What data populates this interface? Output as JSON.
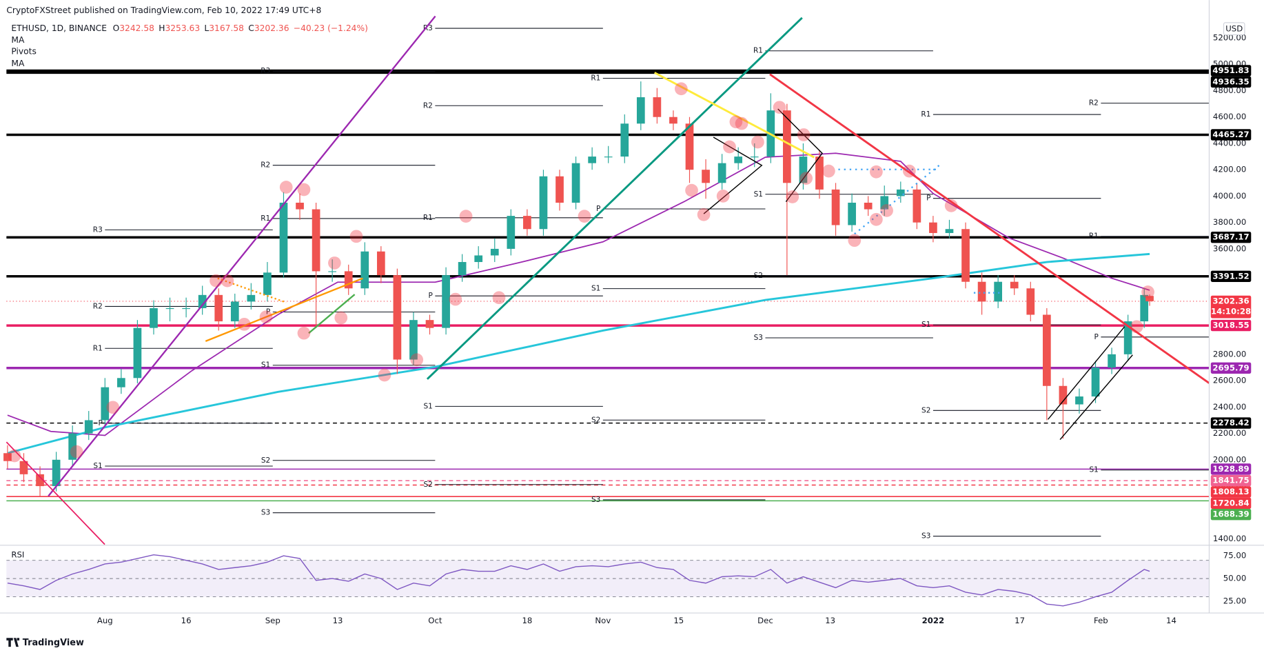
{
  "header": {
    "publisher": "CryptoFXStreet published on TradingView.com, Feb 10, 2022 17:49 UTC+8",
    "symbol": "ETHUSD, 1D, BINANCE",
    "ohlc": [
      {
        "label": "O",
        "value": 3242.58
      },
      {
        "label": "H",
        "value": 3253.63
      },
      {
        "label": "L",
        "value": 3167.58
      },
      {
        "label": "C",
        "value": 3202.36
      }
    ],
    "change": "−40.23 (−1.24%)",
    "pivots_title": "Pivots",
    "currency": "USD",
    "brand": "TradingView"
  },
  "chart_data": {
    "type": "candlestick",
    "up_color": "#26a69a",
    "down_color": "#ef5350",
    "grid": false,
    "xlim": [
      -0.2,
      222
    ],
    "xticks": [
      {
        "value": 18,
        "label": "Aug"
      },
      {
        "value": 33,
        "label": "16"
      },
      {
        "value": 49,
        "label": "Sep"
      },
      {
        "value": 61,
        "label": "13"
      },
      {
        "value": 79,
        "label": "Oct"
      },
      {
        "value": 96,
        "label": "18"
      },
      {
        "value": 110,
        "label": "Nov"
      },
      {
        "value": 124,
        "label": "15"
      },
      {
        "value": 140,
        "label": "Dec"
      },
      {
        "value": 152,
        "label": "13"
      },
      {
        "value": 171,
        "label": "2022"
      },
      {
        "value": 187,
        "label": "17"
      },
      {
        "value": 202,
        "label": "Feb"
      },
      {
        "value": 215,
        "label": "14"
      }
    ],
    "ylim": [
      1376,
      5487
    ],
    "yticks": [
      {
        "value": 1400,
        "label": "1400.00"
      },
      {
        "value": 1600,
        "label": "1600.00"
      },
      {
        "value": 1800,
        "label": "1800.00"
      },
      {
        "value": 2000,
        "label": "2000.00"
      },
      {
        "value": 2200,
        "label": "2200.00"
      },
      {
        "value": 2400,
        "label": "2400.00"
      },
      {
        "value": 2600,
        "label": "2600.00"
      },
      {
        "value": 2800,
        "label": "2800.00"
      },
      {
        "value": 3000,
        "label": "3000.00"
      },
      {
        "value": 3200,
        "label": "3200.00"
      },
      {
        "value": 3400,
        "label": "3400.00"
      },
      {
        "value": 3600,
        "label": "3600.00"
      },
      {
        "value": 3800,
        "label": "3800.00"
      },
      {
        "value": 4000,
        "label": "4000.00"
      },
      {
        "value": 4200,
        "label": "4200.00"
      },
      {
        "value": 4400,
        "label": "4400.00"
      },
      {
        "value": 4600,
        "label": "4600.00"
      },
      {
        "value": 4800,
        "label": "4800.00"
      },
      {
        "value": 5000,
        "label": "5000.00"
      },
      {
        "value": 5200,
        "label": "5200.00"
      }
    ],
    "x": [
      0,
      3,
      6,
      9,
      12,
      15,
      18,
      21,
      24,
      27,
      30,
      33,
      36,
      39,
      42,
      45,
      48,
      51,
      54,
      57,
      60,
      63,
      66,
      69,
      72,
      75,
      78,
      81,
      84,
      87,
      90,
      93,
      96,
      99,
      102,
      105,
      108,
      111,
      114,
      117,
      120,
      123,
      126,
      129,
      132,
      135,
      138,
      141,
      144,
      147,
      150,
      153,
      156,
      159,
      162,
      165,
      168,
      171,
      174,
      177,
      180,
      183,
      186,
      189,
      192,
      195,
      198,
      201,
      204,
      207,
      210,
      211
    ],
    "open": [
      2050,
      1990,
      1890,
      1800,
      2000,
      2200,
      2300,
      2550,
      2620,
      3000,
      3150,
      3150,
      3150,
      3250,
      3050,
      3200,
      3250,
      3420,
      3950,
      3900,
      3430,
      3430,
      3300,
      3580,
      3400,
      2760,
      3060,
      3000,
      3400,
      3500,
      3550,
      3600,
      3850,
      3750,
      4150,
      3950,
      4250,
      4300,
      4300,
      4550,
      4750,
      4600,
      4550,
      4200,
      4100,
      4250,
      4300,
      4300,
      4650,
      4100,
      4300,
      4050,
      3780,
      3950,
      3900,
      4000,
      4050,
      3800,
      3720,
      3750,
      3350,
      3200,
      3350,
      3300,
      3100,
      2560,
      2420,
      2480,
      2700,
      2800,
      3050,
      3242.58
    ],
    "high": [
      2110,
      2050,
      1950,
      2060,
      2260,
      2370,
      2620,
      2690,
      3060,
      3210,
      3230,
      3230,
      3320,
      3300,
      3260,
      3340,
      3500,
      4030,
      4020,
      3950,
      3520,
      3480,
      3650,
      3620,
      3450,
      3120,
      3100,
      3460,
      3560,
      3620,
      3680,
      3900,
      3900,
      4200,
      4200,
      4300,
      4370,
      4380,
      4620,
      4870,
      4820,
      4650,
      4600,
      4280,
      4320,
      4370,
      4400,
      4780,
      4700,
      4400,
      4350,
      4100,
      4020,
      4000,
      4080,
      4110,
      4100,
      3850,
      3820,
      3800,
      3420,
      3400,
      3400,
      3350,
      3150,
      2620,
      2540,
      2750,
      2850,
      3100,
      3300,
      3253.63
    ],
    "low": [
      1930,
      1830,
      1720,
      1760,
      1950,
      2150,
      2250,
      2500,
      2580,
      2950,
      3050,
      3080,
      3100,
      2980,
      3000,
      3140,
      3200,
      3380,
      3820,
      3000,
      3350,
      3250,
      3250,
      3340,
      2650,
      2720,
      2950,
      2950,
      3350,
      3450,
      3500,
      3550,
      3700,
      3700,
      3890,
      3900,
      4200,
      4250,
      4250,
      4500,
      4550,
      4500,
      4100,
      3980,
      4050,
      4200,
      4220,
      4250,
      3400,
      4050,
      3980,
      3700,
      3730,
      3850,
      3850,
      3950,
      3750,
      3650,
      3680,
      3300,
      3100,
      3150,
      3250,
      3050,
      2300,
      2160,
      2350,
      2430,
      2650,
      2750,
      3000,
      3167.58
    ],
    "close": [
      1990,
      1890,
      1800,
      2000,
      2200,
      2300,
      2550,
      2620,
      3000,
      3150,
      3150,
      3150,
      3250,
      3050,
      3200,
      3250,
      3420,
      3950,
      3900,
      3430,
      3430,
      3300,
      3580,
      3400,
      2760,
      3060,
      3000,
      3400,
      3500,
      3550,
      3600,
      3850,
      3750,
      4150,
      3950,
      4250,
      4300,
      4300,
      4550,
      4750,
      4600,
      4550,
      4200,
      4100,
      4250,
      4300,
      4300,
      4650,
      4100,
      4300,
      4050,
      3780,
      3950,
      3900,
      4000,
      4050,
      3800,
      3720,
      3750,
      3350,
      3200,
      3350,
      3300,
      3100,
      2560,
      2420,
      2480,
      2700,
      2800,
      3050,
      3250,
      3202.36
    ],
    "series": [
      {
        "name": "MA",
        "color": "#9c27b0",
        "x": [
          0,
          8,
          18,
          34,
          50,
          61,
          79,
          95,
          110,
          125,
          140,
          153,
          165,
          171,
          185,
          195,
          204,
          211
        ],
        "values": [
          2338,
          2215,
          2185,
          2674,
          3102,
          3347,
          3347,
          3500,
          3653,
          3958,
          4295,
          4325,
          4264,
          4020,
          3683,
          3530,
          3377,
          3286
        ]
      },
      {
        "name": "MA",
        "color": "#26c6da",
        "x": [
          0,
          18,
          50,
          79,
          110,
          140,
          171,
          192,
          211
        ],
        "values": [
          2050,
          2246,
          2515,
          2705,
          2980,
          3212,
          3377,
          3500,
          3561
        ]
      }
    ],
    "levels": [
      {
        "value": 4951.83,
        "color": "#000000",
        "style": "thick"
      },
      {
        "value": 4936.35,
        "color": "#000000",
        "style": "thick"
      },
      {
        "value": 4465.27,
        "color": "#000000",
        "style": "thick"
      },
      {
        "value": 3687.17,
        "color": "#000000",
        "style": "thick"
      },
      {
        "value": 3391.52,
        "color": "#000000",
        "style": "thick"
      },
      {
        "value": 3202.36,
        "color": "#f23645",
        "style": "dotted",
        "countdown": "14:10:28"
      },
      {
        "value": 3018.55,
        "color": "#e91e63",
        "style": "thick"
      },
      {
        "value": 2695.79,
        "color": "#9c27b0",
        "style": "thick"
      },
      {
        "value": 2278.42,
        "color": "#000000",
        "style": "dashed"
      },
      {
        "value": 1928.89,
        "color": "#9c27b0",
        "style": "solid"
      },
      {
        "value": 1841.75,
        "color": "#f06292",
        "style": "dashed"
      },
      {
        "value": 1808.13,
        "color": "#f23645",
        "style": "dashed"
      },
      {
        "value": 1720.84,
        "color": "#f23645",
        "style": "solid"
      },
      {
        "value": 1688.39,
        "color": "#4caf50",
        "style": "solid"
      }
    ],
    "pivots": [
      {
        "levels": [
          {
            "label": "R3",
            "value": 3744
          },
          {
            "label": "R2",
            "value": 3163
          },
          {
            "label": "R1",
            "value": 2845
          },
          {
            "label": "P",
            "value": 2277
          },
          {
            "label": "S1",
            "value": 1952
          }
        ]
      },
      {
        "levels": [
          {
            "label": "R3",
            "value": 4949
          },
          {
            "label": "R2",
            "value": 4234
          },
          {
            "label": "R1",
            "value": 3830
          },
          {
            "label": "P",
            "value": 3121
          },
          {
            "label": "S1",
            "value": 2717
          },
          {
            "label": "S2",
            "value": 1995
          },
          {
            "label": "S3",
            "value": 1598
          }
        ]
      },
      {
        "levels": [
          {
            "label": "R3",
            "value": 5273
          },
          {
            "label": "R2",
            "value": 4686
          },
          {
            "label": "R1",
            "value": 3836
          },
          {
            "label": "P",
            "value": 3243
          },
          {
            "label": "S1",
            "value": 2405
          },
          {
            "label": "S2",
            "value": 1812
          }
        ]
      },
      {
        "levels": [
          {
            "label": "R1",
            "value": 4894
          },
          {
            "label": "P",
            "value": 3903
          },
          {
            "label": "S1",
            "value": 3298
          },
          {
            "label": "S2",
            "value": 2301
          },
          {
            "label": "S3",
            "value": 1696
          }
        ]
      },
      {
        "levels": [
          {
            "label": "R1",
            "value": 5102
          },
          {
            "label": "S1",
            "value": 4014
          },
          {
            "label": "S2",
            "value": 3396
          },
          {
            "label": "S3",
            "value": 2925
          }
        ]
      },
      {
        "levels": [
          {
            "label": "R1",
            "value": 4619
          },
          {
            "label": "P",
            "value": 3983
          },
          {
            "label": "S1",
            "value": 3023
          },
          {
            "label": "S2",
            "value": 2374
          },
          {
            "label": "S3",
            "value": 1420
          }
        ]
      },
      {
        "levels": [
          {
            "label": "R2",
            "value": 4705
          },
          {
            "label": "R1",
            "value": 3695
          },
          {
            "label": "P",
            "value": 2931
          },
          {
            "label": "S1",
            "value": 1922
          }
        ]
      }
    ],
    "rsi": {
      "title": "RSI",
      "color": "#7e57c2",
      "ylim": [
        14,
        83
      ],
      "levels": [
        70,
        50,
        30
      ],
      "yticks": [
        {
          "value": 75,
          "label": "75.00"
        },
        {
          "value": 50,
          "label": "50.00"
        },
        {
          "value": 25,
          "label": "25.00"
        }
      ],
      "values": [
        45,
        42,
        38,
        48,
        55,
        60,
        66,
        68,
        72,
        76,
        74,
        70,
        66,
        60,
        62,
        64,
        68,
        75,
        72,
        48,
        50,
        47,
        55,
        50,
        38,
        45,
        42,
        55,
        60,
        58,
        58,
        64,
        60,
        66,
        58,
        63,
        64,
        63,
        66,
        68,
        62,
        60,
        48,
        45,
        52,
        53,
        52,
        60,
        45,
        52,
        46,
        40,
        48,
        46,
        48,
        50,
        42,
        40,
        42,
        35,
        32,
        38,
        36,
        32,
        22,
        20,
        24,
        30,
        35,
        48,
        60,
        58
      ]
    }
  }
}
